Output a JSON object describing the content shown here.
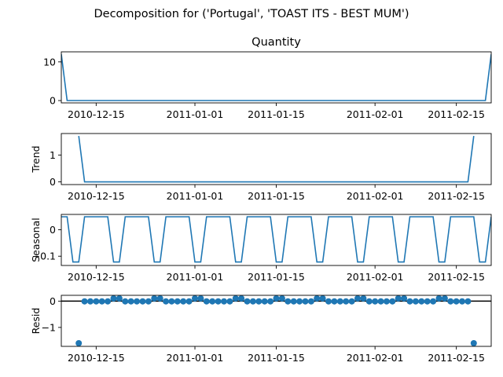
{
  "figure": {
    "suptitle": "Decomposition for ('Portugal', 'TOAST ITS - BEST MUM')"
  },
  "colors": {
    "line": "#1f77b4",
    "marker": "#1f77b4",
    "zero_line": "#000000",
    "axes": "#000000"
  },
  "chart_data": [
    {
      "type": "line",
      "title": "Quantity",
      "ylabel": "",
      "x_start": "2010-12-09",
      "x_end": "2011-02-21",
      "xlim": [
        "2010-12-09",
        "2011-02-21"
      ],
      "ylim": [
        -0.6,
        12.6
      ],
      "yticks": [
        0,
        10
      ],
      "xticks": [
        "2010-12-15",
        "2011-01-01",
        "2011-01-15",
        "2011-02-01",
        "2011-02-15"
      ],
      "grid": false,
      "points": [
        {
          "x": "2010-12-09",
          "y": 12
        },
        {
          "x": "2010-12-10",
          "y": 0
        },
        {
          "x": "2011-02-20",
          "y": 0
        },
        {
          "x": "2011-02-21",
          "y": 12
        }
      ]
    },
    {
      "type": "line",
      "title": "",
      "ylabel": "Trend",
      "xlim": [
        "2010-12-09",
        "2011-02-21"
      ],
      "ylim": [
        -0.1,
        1.8
      ],
      "yticks": [
        0,
        1
      ],
      "xticks": [
        "2010-12-15",
        "2011-01-01",
        "2011-01-15",
        "2011-02-01",
        "2011-02-15"
      ],
      "grid": false,
      "points": [
        {
          "x": "2010-12-12",
          "y": 1.71
        },
        {
          "x": "2010-12-13",
          "y": 0
        },
        {
          "x": "2011-02-17",
          "y": 0
        },
        {
          "x": "2011-02-18",
          "y": 1.71
        }
      ]
    },
    {
      "type": "line",
      "title": "",
      "ylabel": "Seasonal",
      "xlim": [
        "2010-12-09",
        "2011-02-21"
      ],
      "ylim": [
        -0.135,
        0.058
      ],
      "yticks": [
        0.0,
        -0.1
      ],
      "xticks": [
        "2010-12-15",
        "2011-01-01",
        "2011-01-15",
        "2011-02-01",
        "2011-02-15"
      ],
      "grid": false,
      "weekly_pattern": [
        0.049,
        0.049,
        0.049,
        0.049,
        0.049,
        -0.122,
        -0.122
      ],
      "pattern_start": "2010-12-13",
      "series_start": "2010-12-09",
      "series_end": "2011-02-21"
    },
    {
      "type": "scatter",
      "title": "",
      "ylabel": "Resid",
      "xlim": [
        "2010-12-09",
        "2011-02-21"
      ],
      "ylim": [
        -1.72,
        0.22
      ],
      "yticks": [
        0,
        -1
      ],
      "xticks": [
        "2010-12-15",
        "2011-01-01",
        "2011-01-15",
        "2011-02-01",
        "2011-02-15"
      ],
      "grid": false,
      "zero_line": true,
      "points": [
        {
          "x": "2010-12-12",
          "y": -1.6
        },
        {
          "x": "2010-12-13",
          "y": -0.01
        },
        {
          "x": "2010-12-14",
          "y": -0.01
        },
        {
          "x": "2010-12-15",
          "y": -0.01
        },
        {
          "x": "2010-12-16",
          "y": -0.01
        },
        {
          "x": "2010-12-17",
          "y": -0.01
        },
        {
          "x": "2010-12-18",
          "y": 0.1
        },
        {
          "x": "2010-12-19",
          "y": 0.1
        },
        {
          "x": "2010-12-20",
          "y": -0.01
        },
        {
          "x": "2010-12-21",
          "y": -0.01
        },
        {
          "x": "2010-12-22",
          "y": -0.01
        },
        {
          "x": "2010-12-23",
          "y": -0.01
        },
        {
          "x": "2010-12-24",
          "y": -0.01
        },
        {
          "x": "2010-12-25",
          "y": 0.1
        },
        {
          "x": "2010-12-26",
          "y": 0.1
        },
        {
          "x": "2010-12-27",
          "y": -0.01
        },
        {
          "x": "2010-12-28",
          "y": -0.01
        },
        {
          "x": "2010-12-29",
          "y": -0.01
        },
        {
          "x": "2010-12-30",
          "y": -0.01
        },
        {
          "x": "2010-12-31",
          "y": -0.01
        },
        {
          "x": "2011-01-01",
          "y": 0.1
        },
        {
          "x": "2011-01-02",
          "y": 0.1
        },
        {
          "x": "2011-01-03",
          "y": -0.01
        },
        {
          "x": "2011-01-04",
          "y": -0.01
        },
        {
          "x": "2011-01-05",
          "y": -0.01
        },
        {
          "x": "2011-01-06",
          "y": -0.01
        },
        {
          "x": "2011-01-07",
          "y": -0.01
        },
        {
          "x": "2011-01-08",
          "y": 0.1
        },
        {
          "x": "2011-01-09",
          "y": 0.1
        },
        {
          "x": "2011-01-10",
          "y": -0.01
        },
        {
          "x": "2011-01-11",
          "y": -0.01
        },
        {
          "x": "2011-01-12",
          "y": -0.01
        },
        {
          "x": "2011-01-13",
          "y": -0.01
        },
        {
          "x": "2011-01-14",
          "y": -0.01
        },
        {
          "x": "2011-01-15",
          "y": 0.1
        },
        {
          "x": "2011-01-16",
          "y": 0.1
        },
        {
          "x": "2011-01-17",
          "y": -0.01
        },
        {
          "x": "2011-01-18",
          "y": -0.01
        },
        {
          "x": "2011-01-19",
          "y": -0.01
        },
        {
          "x": "2011-01-20",
          "y": -0.01
        },
        {
          "x": "2011-01-21",
          "y": -0.01
        },
        {
          "x": "2011-01-22",
          "y": 0.1
        },
        {
          "x": "2011-01-23",
          "y": 0.1
        },
        {
          "x": "2011-01-24",
          "y": -0.01
        },
        {
          "x": "2011-01-25",
          "y": -0.01
        },
        {
          "x": "2011-01-26",
          "y": -0.01
        },
        {
          "x": "2011-01-27",
          "y": -0.01
        },
        {
          "x": "2011-01-28",
          "y": -0.01
        },
        {
          "x": "2011-01-29",
          "y": 0.1
        },
        {
          "x": "2011-01-30",
          "y": 0.1
        },
        {
          "x": "2011-01-31",
          "y": -0.01
        },
        {
          "x": "2011-02-01",
          "y": -0.01
        },
        {
          "x": "2011-02-02",
          "y": -0.01
        },
        {
          "x": "2011-02-03",
          "y": -0.01
        },
        {
          "x": "2011-02-04",
          "y": -0.01
        },
        {
          "x": "2011-02-05",
          "y": 0.1
        },
        {
          "x": "2011-02-06",
          "y": 0.1
        },
        {
          "x": "2011-02-07",
          "y": -0.01
        },
        {
          "x": "2011-02-08",
          "y": -0.01
        },
        {
          "x": "2011-02-09",
          "y": -0.01
        },
        {
          "x": "2011-02-10",
          "y": -0.01
        },
        {
          "x": "2011-02-11",
          "y": -0.01
        },
        {
          "x": "2011-02-12",
          "y": 0.1
        },
        {
          "x": "2011-02-13",
          "y": 0.1
        },
        {
          "x": "2011-02-14",
          "y": -0.01
        },
        {
          "x": "2011-02-15",
          "y": -0.01
        },
        {
          "x": "2011-02-16",
          "y": -0.01
        },
        {
          "x": "2011-02-17",
          "y": -0.01
        },
        {
          "x": "2011-02-18",
          "y": -1.6
        }
      ]
    }
  ]
}
